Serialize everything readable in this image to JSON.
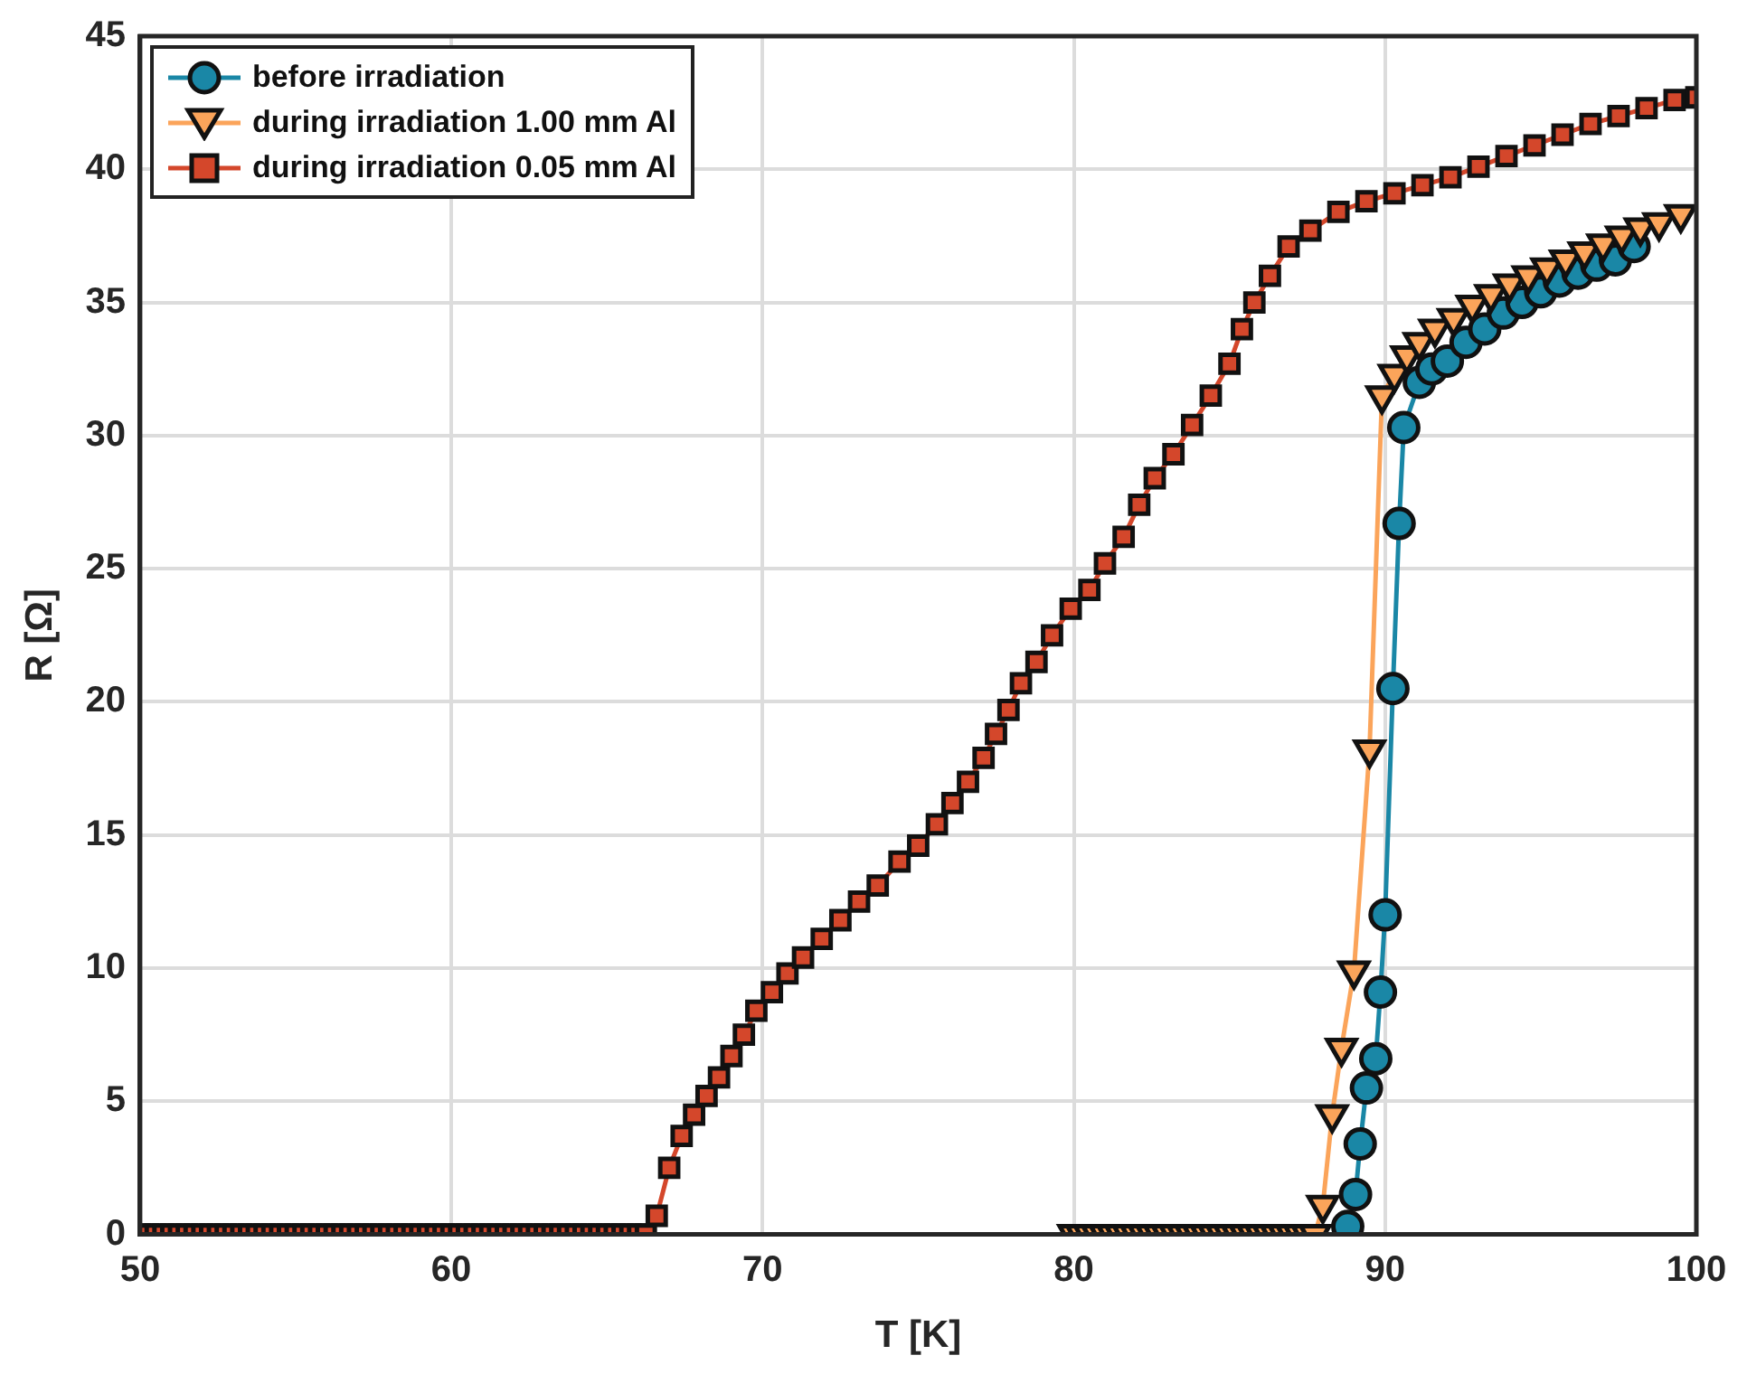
{
  "chart_data": {
    "type": "line",
    "xlabel": "T [K]",
    "ylabel": "R [Ω]",
    "xlim": [
      50,
      100
    ],
    "xticks": [
      50,
      60,
      70,
      80,
      90,
      100
    ],
    "ylim": [
      0,
      45
    ],
    "yticks": [
      0,
      5,
      10,
      15,
      20,
      25,
      30,
      35,
      40,
      45
    ],
    "grid": true,
    "legend": "top left",
    "line_style": "solid",
    "series": [
      {
        "name": "before irradiation",
        "color": "#1a87a6",
        "marker": "circle",
        "x": [
          88.8,
          89.05,
          89.2,
          89.4,
          89.7,
          89.85,
          90.0,
          90.25,
          90.45,
          90.6,
          91.1,
          91.5,
          92.0,
          92.6,
          93.2,
          93.8,
          94.4,
          95.0,
          95.6,
          96.2,
          96.8,
          97.4,
          98.0
        ],
        "values": [
          0.3,
          1.5,
          3.4,
          5.5,
          6.6,
          9.1,
          12.0,
          20.5,
          26.7,
          30.3,
          32.0,
          32.5,
          32.8,
          33.5,
          34.0,
          34.6,
          35.0,
          35.4,
          35.8,
          36.1,
          36.4,
          36.6,
          37.1
        ]
      },
      {
        "name": "during irradiation 1.00 mm Al",
        "color": "#fba45a",
        "marker": "triangle",
        "x": [
          80,
          80.25,
          80.5,
          80.75,
          81,
          81.25,
          81.5,
          81.75,
          82,
          82.25,
          82.5,
          82.75,
          83,
          83.25,
          83.5,
          83.75,
          84,
          84.25,
          84.5,
          84.75,
          85,
          85.25,
          85.5,
          85.75,
          86,
          86.25,
          86.5,
          86.75,
          87,
          87.25,
          87.5,
          87.75,
          88.0,
          88.3,
          88.6,
          89.0,
          89.5,
          89.9,
          90.3,
          90.7,
          91.1,
          91.6,
          92.2,
          92.8,
          93.4,
          94.0,
          94.6,
          95.2,
          95.8,
          96.4,
          97.0,
          97.6,
          98.2,
          98.8,
          99.5
        ],
        "values": [
          0,
          0,
          0,
          0,
          0,
          0,
          0,
          0,
          0,
          0,
          0,
          0,
          0,
          0,
          0,
          0,
          0,
          0,
          0,
          0,
          0,
          0,
          0,
          0,
          0,
          0,
          0,
          0,
          0,
          0,
          0,
          0,
          1.1,
          4.5,
          7.0,
          9.9,
          18.2,
          31.5,
          32.3,
          33.0,
          33.5,
          34.0,
          34.4,
          34.9,
          35.3,
          35.7,
          36.0,
          36.3,
          36.6,
          36.9,
          37.2,
          37.5,
          37.8,
          38.0,
          38.3
        ]
      },
      {
        "name": "during irradiation 0.05 mm Al",
        "color": "#d4472b",
        "marker": "square",
        "x": [
          50,
          50.25,
          50.5,
          50.75,
          51,
          51.25,
          51.5,
          51.75,
          52,
          52.25,
          52.5,
          52.75,
          53,
          53.25,
          53.5,
          53.75,
          54,
          54.25,
          54.5,
          54.75,
          55,
          55.25,
          55.5,
          55.75,
          56,
          56.25,
          56.5,
          56.75,
          57,
          57.25,
          57.5,
          57.75,
          58,
          58.25,
          58.5,
          58.75,
          59,
          59.25,
          59.5,
          59.75,
          60,
          60.25,
          60.5,
          60.75,
          61,
          61.25,
          61.5,
          61.75,
          62,
          62.25,
          62.5,
          62.75,
          63,
          63.25,
          63.5,
          63.75,
          64,
          64.25,
          64.5,
          64.75,
          65,
          65.25,
          65.5,
          65.75,
          66,
          66.25,
          66.6,
          67.0,
          67.4,
          67.8,
          68.2,
          68.6,
          69.0,
          69.4,
          69.8,
          70.3,
          70.8,
          71.3,
          71.9,
          72.5,
          73.1,
          73.7,
          74.4,
          75.0,
          75.6,
          76.1,
          76.6,
          77.1,
          77.5,
          77.9,
          78.3,
          78.8,
          79.3,
          79.9,
          80.5,
          81.0,
          81.6,
          82.1,
          82.6,
          83.2,
          83.8,
          84.4,
          85.0,
          85.4,
          85.8,
          86.3,
          86.9,
          87.6,
          88.5,
          89.4,
          90.3,
          91.2,
          92.1,
          93.0,
          93.9,
          94.8,
          95.7,
          96.6,
          97.5,
          98.4,
          99.3,
          100
        ],
        "values": [
          0,
          0,
          0,
          0,
          0,
          0,
          0,
          0,
          0,
          0,
          0,
          0,
          0,
          0,
          0,
          0,
          0,
          0,
          0,
          0,
          0,
          0,
          0,
          0,
          0,
          0,
          0,
          0,
          0,
          0,
          0,
          0,
          0,
          0,
          0,
          0,
          0,
          0,
          0,
          0,
          0,
          0,
          0,
          0,
          0,
          0,
          0,
          0,
          0,
          0,
          0,
          0,
          0,
          0,
          0,
          0,
          0,
          0,
          0,
          0,
          0,
          0,
          0,
          0,
          0,
          0,
          0.7,
          2.5,
          3.7,
          4.5,
          5.2,
          5.9,
          6.7,
          7.5,
          8.4,
          9.1,
          9.8,
          10.4,
          11.1,
          11.8,
          12.5,
          13.1,
          14.0,
          14.6,
          15.4,
          16.2,
          17.0,
          17.9,
          18.8,
          19.7,
          20.7,
          21.5,
          22.5,
          23.5,
          24.2,
          25.2,
          26.2,
          27.4,
          28.4,
          29.3,
          30.4,
          31.5,
          32.7,
          34.0,
          35.0,
          36.0,
          37.1,
          37.7,
          38.4,
          38.8,
          39.1,
          39.4,
          39.7,
          40.1,
          40.5,
          40.9,
          41.3,
          41.7,
          42.0,
          42.3,
          42.6,
          42.7
        ]
      }
    ]
  }
}
